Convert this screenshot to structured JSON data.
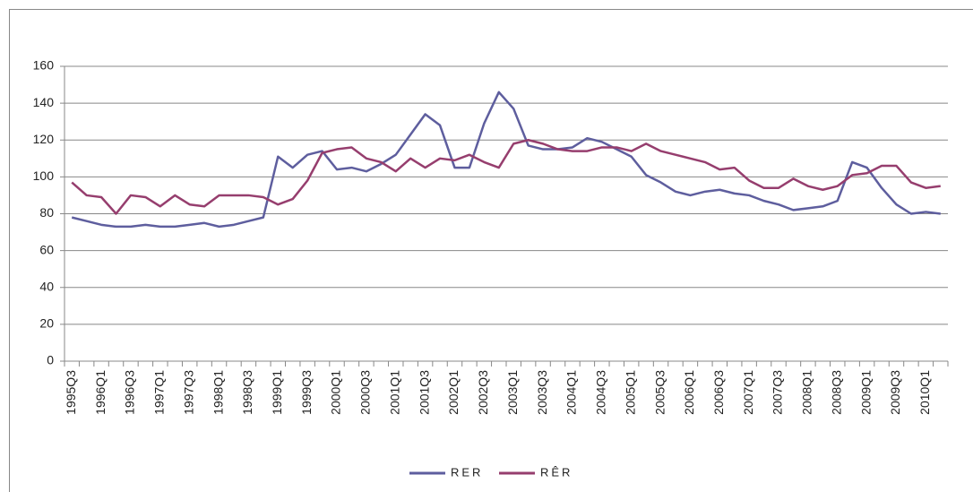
{
  "chart_data": {
    "type": "line",
    "categories": [
      "1995Q3",
      null,
      "1996Q1",
      null,
      "1996Q3",
      null,
      "1997Q1",
      null,
      "1997Q3",
      null,
      "1998Q1",
      null,
      "1998Q3",
      null,
      "1999Q1",
      null,
      "1999Q3",
      null,
      "2000Q1",
      null,
      "2000Q3",
      null,
      "2001Q1",
      null,
      "2001Q3",
      null,
      "2002Q1",
      null,
      "2002Q3",
      null,
      "2003Q1",
      null,
      "2003Q3",
      null,
      "2004Q1",
      null,
      "2004Q3",
      null,
      "2005Q1",
      null,
      "2005Q3",
      null,
      "2006Q1",
      null,
      "2006Q3",
      null,
      "2007Q1",
      null,
      "2007Q3",
      null,
      "2008Q1",
      null,
      "2008Q3",
      null,
      "2009Q1",
      null,
      "2009Q3",
      null,
      "2010Q1",
      null
    ],
    "series": [
      {
        "name": "RER",
        "color": "#5e5e9e",
        "values": [
          78,
          76,
          74,
          73,
          73,
          74,
          73,
          73,
          74,
          75,
          73,
          74,
          76,
          78,
          111,
          105,
          112,
          114,
          104,
          105,
          103,
          107,
          112,
          123,
          134,
          128,
          105,
          105,
          129,
          146,
          137,
          117,
          115,
          115,
          116,
          121,
          119,
          115,
          111,
          101,
          97,
          92,
          90,
          92,
          93,
          91,
          90,
          87,
          85,
          82,
          83,
          84,
          87,
          108,
          105,
          94,
          85,
          80,
          81,
          80
        ]
      },
      {
        "name": "RÊR",
        "color": "#963e6e",
        "values": [
          97,
          90,
          89,
          80,
          90,
          89,
          84,
          90,
          85,
          84,
          90,
          90,
          90,
          89,
          85,
          88,
          98,
          113,
          115,
          116,
          110,
          108,
          103,
          110,
          105,
          110,
          109,
          112,
          108,
          105,
          118,
          120,
          118,
          115,
          114,
          114,
          116,
          116,
          114,
          118,
          114,
          112,
          110,
          108,
          104,
          105,
          98,
          94,
          94,
          99,
          95,
          93,
          95,
          101,
          102,
          106,
          106,
          97,
          94,
          95
        ]
      }
    ],
    "ylim": [
      0,
      160
    ],
    "yticks": [
      0,
      20,
      40,
      60,
      80,
      100,
      120,
      140,
      160
    ],
    "grid": true,
    "legend": "bottom"
  }
}
